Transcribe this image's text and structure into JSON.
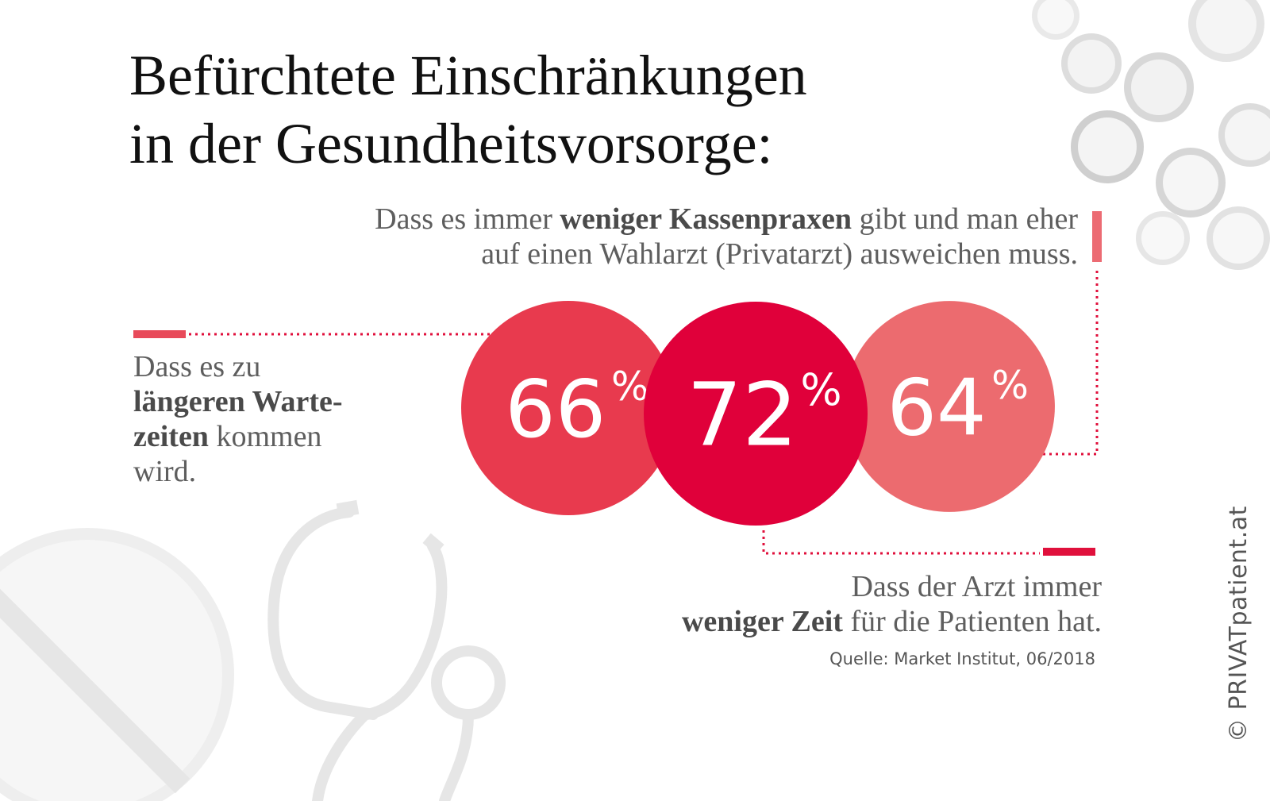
{
  "title": {
    "line1": "Befürchtete Einschränkungen",
    "line2": "in der Gesundheitsvorsorge:"
  },
  "callouts": {
    "top": {
      "line1_pre": "Dass es immer ",
      "line1_bold": "weniger Kassenpraxen",
      "line1_post": " gibt und man eher",
      "line2": "auf einen Wahlarzt (Privatarzt) ausweichen muss."
    },
    "left": {
      "line1": "Dass es zu",
      "line2_bold": "längeren Warte-",
      "line3_bold": "zeiten",
      "line3_post": " kommen",
      "line4": "wird."
    },
    "bottom": {
      "line1": "Dass der Arzt immer",
      "line2_bold": "weniger Zeit",
      "line2_post": " für die Patienten hat."
    }
  },
  "source": "Quelle: Market Institut, 06/2018",
  "copyright": "© PRIVATpatient.at",
  "colors": {
    "left": "#e83a4e",
    "center": "#e0003a",
    "right": "#ec6b6f",
    "line": "#e0103c"
  },
  "chart_data": {
    "type": "bubble",
    "unit": "%",
    "values": [
      {
        "value": 66,
        "label": "66",
        "color": "#e83a4e"
      },
      {
        "value": 72,
        "label": "72",
        "color": "#e0003a"
      },
      {
        "value": 64,
        "label": "64",
        "color": "#ec6b6f"
      }
    ]
  }
}
